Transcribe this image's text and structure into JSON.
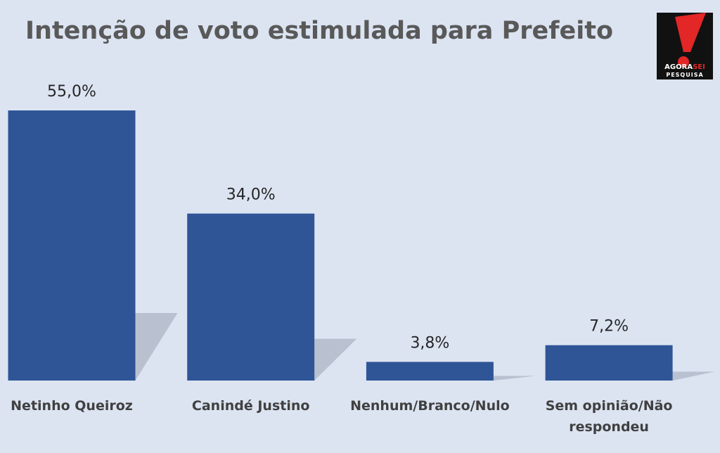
{
  "chart_data": {
    "type": "bar",
    "title": "Intenção de voto estimulada para Prefeito",
    "categories": [
      "Netinho Queiroz",
      "Canindé Justino",
      "Nenhum/Branco/Nulo",
      "Sem opinião/Não respondeu"
    ],
    "values": [
      55.0,
      34.0,
      3.8,
      7.2
    ],
    "value_labels": [
      "55,0%",
      "34,0%",
      "3,8%",
      "7,2%"
    ],
    "color": "#2f5597"
  },
  "logo": {
    "brand": "AGORA",
    "brand_accent": "SEI",
    "subtitle": "PESQUISA"
  }
}
